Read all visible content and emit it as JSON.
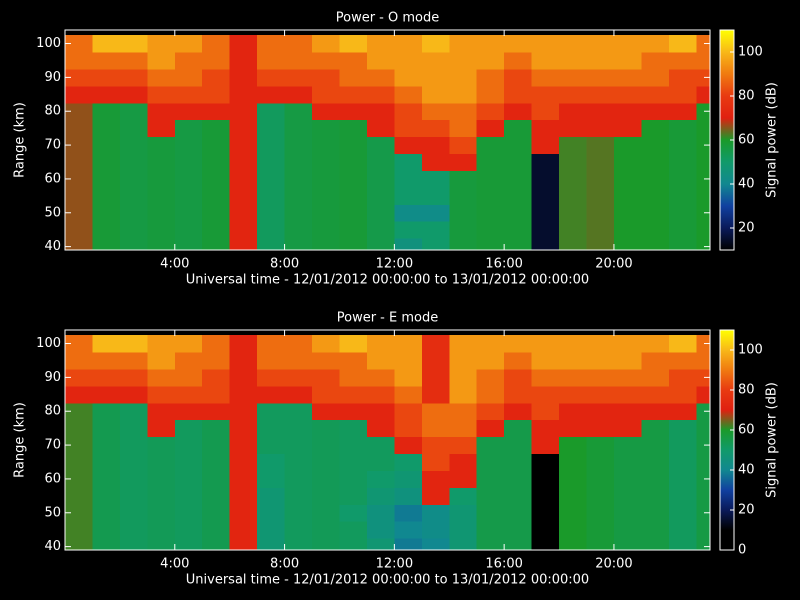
{
  "chart_data": [
    {
      "type": "heatmap",
      "title": "Power - O mode",
      "xlabel": "Universal time - 12/01/2012 00:00:00 to 13/01/2012 00:00:00",
      "ylabel": "Range (km)",
      "colorbar_label": "Signal power (dB)",
      "x": [
        0,
        1,
        2,
        3,
        4,
        5,
        6,
        7,
        8,
        9,
        10,
        11,
        12,
        13,
        14,
        15,
        16,
        17,
        18,
        19,
        20,
        21,
        22,
        23
      ],
      "y": [
        40,
        45,
        50,
        55,
        60,
        65,
        70,
        75,
        80,
        85,
        90,
        95,
        100
      ],
      "values": [
        [
          66,
          58,
          56,
          57,
          56,
          58,
          72,
          52,
          56,
          57,
          58,
          55,
          45,
          50,
          57,
          58,
          58,
          15,
          62,
          63,
          60,
          60,
          58,
          60
        ],
        [
          66,
          58,
          56,
          57,
          56,
          58,
          72,
          52,
          56,
          57,
          58,
          55,
          50,
          50,
          57,
          58,
          58,
          15,
          62,
          63,
          60,
          60,
          58,
          60
        ],
        [
          66,
          58,
          56,
          57,
          56,
          58,
          72,
          52,
          56,
          57,
          58,
          55,
          42,
          42,
          57,
          58,
          58,
          15,
          62,
          63,
          60,
          60,
          58,
          60
        ],
        [
          66,
          58,
          56,
          57,
          56,
          58,
          72,
          52,
          56,
          57,
          58,
          55,
          50,
          50,
          57,
          58,
          58,
          15,
          62,
          63,
          60,
          60,
          58,
          60
        ],
        [
          66,
          58,
          56,
          57,
          56,
          58,
          72,
          52,
          56,
          57,
          58,
          55,
          50,
          50,
          57,
          58,
          58,
          15,
          62,
          63,
          60,
          60,
          58,
          60
        ],
        [
          66,
          58,
          56,
          57,
          56,
          58,
          72,
          52,
          56,
          57,
          58,
          55,
          50,
          72,
          72,
          58,
          58,
          15,
          62,
          63,
          60,
          60,
          58,
          60
        ],
        [
          66,
          58,
          56,
          57,
          56,
          58,
          72,
          52,
          56,
          57,
          58,
          55,
          72,
          72,
          82,
          58,
          58,
          72,
          62,
          63,
          60,
          60,
          58,
          60
        ],
        [
          66,
          58,
          56,
          72,
          56,
          58,
          72,
          52,
          56,
          57,
          58,
          72,
          82,
          82,
          88,
          72,
          58,
          72,
          72,
          72,
          72,
          60,
          58,
          60
        ],
        [
          66,
          58,
          56,
          72,
          72,
          72,
          72,
          52,
          56,
          72,
          72,
          72,
          82,
          88,
          88,
          82,
          72,
          82,
          72,
          72,
          72,
          72,
          72,
          60
        ],
        [
          72,
          72,
          72,
          82,
          82,
          82,
          72,
          72,
          72,
          82,
          82,
          82,
          88,
          95,
          95,
          88,
          82,
          82,
          82,
          82,
          82,
          82,
          82,
          72
        ],
        [
          82,
          82,
          82,
          88,
          88,
          82,
          72,
          82,
          82,
          82,
          88,
          88,
          95,
          95,
          95,
          88,
          82,
          88,
          88,
          88,
          88,
          88,
          82,
          82
        ],
        [
          88,
          88,
          88,
          95,
          88,
          88,
          72,
          88,
          88,
          88,
          88,
          95,
          95,
          95,
          95,
          95,
          88,
          95,
          95,
          95,
          95,
          88,
          88,
          88
        ],
        [
          88,
          100,
          100,
          95,
          95,
          88,
          72,
          88,
          88,
          95,
          100,
          95,
          95,
          100,
          95,
          95,
          95,
          95,
          95,
          95,
          95,
          95,
          100,
          88
        ]
      ],
      "xlim": [
        0,
        23.5
      ],
      "ylim": [
        39,
        104
      ],
      "xticks": [
        {
          "value": 4,
          "label": "4:00"
        },
        {
          "value": 8,
          "label": "8:00"
        },
        {
          "value": 12,
          "label": "12:00"
        },
        {
          "value": 16,
          "label": "16:00"
        },
        {
          "value": 20,
          "label": "20:00"
        }
      ],
      "yticks": [
        40,
        50,
        60,
        70,
        80,
        90,
        100
      ],
      "zlim": [
        10,
        110
      ],
      "zticks": [
        20,
        40,
        60,
        80,
        100
      ],
      "colorscale": [
        "#000000",
        "#0a1a5a",
        "#1040a0",
        "#108890",
        "#109a6a",
        "#1a9a2a",
        "#e02010",
        "#e83a10",
        "#f07a10",
        "#f8b818",
        "#ffff00"
      ]
    },
    {
      "type": "heatmap",
      "title": "Power - E mode",
      "xlabel": "Universal time - 12/01/2012 00:00:00 to 13/01/2012 00:00:00",
      "ylabel": "Range (km)",
      "colorbar_label": "Signal power (dB)",
      "x": [
        0,
        1,
        2,
        3,
        4,
        5,
        6,
        7,
        8,
        9,
        10,
        11,
        12,
        13,
        14,
        15,
        16,
        17,
        18,
        19,
        20,
        21,
        22,
        23
      ],
      "y": [
        40,
        45,
        50,
        55,
        60,
        65,
        70,
        75,
        80,
        85,
        90,
        95,
        100
      ],
      "values": [
        [
          62,
          54,
          52,
          53,
          52,
          54,
          72,
          48,
          52,
          53,
          52,
          48,
          38,
          40,
          48,
          55,
          55,
          10,
          60,
          58,
          56,
          56,
          52,
          56
        ],
        [
          62,
          54,
          52,
          53,
          52,
          54,
          72,
          48,
          52,
          53,
          52,
          45,
          40,
          42,
          48,
          55,
          55,
          10,
          60,
          58,
          56,
          56,
          52,
          56
        ],
        [
          62,
          54,
          52,
          53,
          52,
          54,
          72,
          48,
          52,
          53,
          50,
          45,
          38,
          42,
          48,
          55,
          55,
          10,
          60,
          58,
          56,
          56,
          52,
          56
        ],
        [
          62,
          54,
          52,
          53,
          52,
          54,
          72,
          48,
          52,
          53,
          52,
          48,
          45,
          72,
          50,
          55,
          55,
          10,
          60,
          58,
          56,
          56,
          52,
          56
        ],
        [
          62,
          54,
          52,
          53,
          52,
          54,
          72,
          50,
          52,
          53,
          52,
          50,
          48,
          72,
          72,
          55,
          55,
          10,
          60,
          58,
          56,
          56,
          52,
          56
        ],
        [
          62,
          54,
          52,
          53,
          52,
          54,
          72,
          50,
          52,
          53,
          52,
          52,
          50,
          82,
          72,
          55,
          55,
          10,
          60,
          58,
          56,
          56,
          52,
          56
        ],
        [
          62,
          54,
          52,
          53,
          52,
          54,
          72,
          52,
          52,
          53,
          52,
          52,
          72,
          82,
          82,
          55,
          55,
          72,
          60,
          58,
          56,
          56,
          52,
          56
        ],
        [
          62,
          54,
          52,
          72,
          52,
          54,
          72,
          52,
          52,
          53,
          52,
          72,
          82,
          88,
          88,
          72,
          55,
          72,
          72,
          72,
          72,
          56,
          52,
          56
        ],
        [
          62,
          54,
          52,
          72,
          72,
          72,
          72,
          52,
          52,
          72,
          72,
          72,
          82,
          88,
          88,
          82,
          72,
          82,
          72,
          72,
          72,
          72,
          72,
          56
        ],
        [
          72,
          72,
          72,
          82,
          82,
          82,
          72,
          72,
          72,
          82,
          82,
          82,
          88,
          75,
          95,
          88,
          82,
          82,
          82,
          82,
          82,
          82,
          82,
          72
        ],
        [
          82,
          82,
          82,
          88,
          88,
          82,
          72,
          82,
          82,
          82,
          88,
          88,
          95,
          75,
          95,
          88,
          82,
          88,
          88,
          88,
          88,
          88,
          82,
          82
        ],
        [
          88,
          88,
          88,
          95,
          88,
          88,
          72,
          88,
          88,
          88,
          88,
          95,
          95,
          75,
          95,
          95,
          88,
          95,
          95,
          95,
          95,
          88,
          88,
          88
        ],
        [
          88,
          100,
          100,
          95,
          95,
          88,
          72,
          88,
          88,
          95,
          100,
          95,
          95,
          75,
          95,
          95,
          95,
          95,
          95,
          95,
          95,
          95,
          100,
          88
        ]
      ],
      "xlim": [
        0,
        23.5
      ],
      "ylim": [
        39,
        104
      ],
      "xticks": [
        {
          "value": 4,
          "label": "4:00"
        },
        {
          "value": 8,
          "label": "8:00"
        },
        {
          "value": 12,
          "label": "12:00"
        },
        {
          "value": 16,
          "label": "16:00"
        },
        {
          "value": 20,
          "label": "20:00"
        }
      ],
      "yticks": [
        40,
        50,
        60,
        70,
        80,
        90,
        100
      ],
      "zlim": [
        0,
        110
      ],
      "zticks": [
        0,
        20,
        40,
        60,
        80,
        100
      ],
      "colorscale": [
        "#000000",
        "#000000",
        "#0a1a5a",
        "#1040a0",
        "#108890",
        "#109a6a",
        "#1a9a2a",
        "#e02010",
        "#e83a10",
        "#f07a10",
        "#f8b818",
        "#ffff00"
      ]
    }
  ]
}
